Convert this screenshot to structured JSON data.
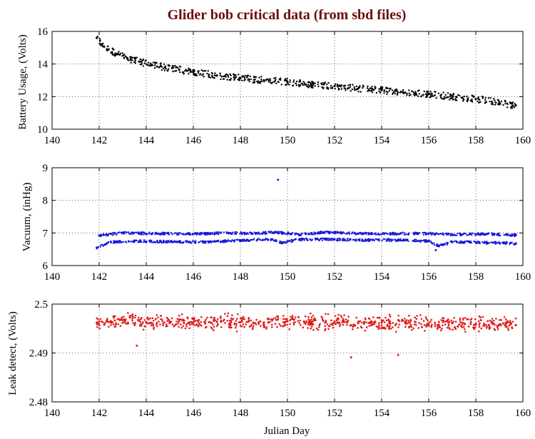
{
  "figure": {
    "title": "Glider bob critical data (from sbd files)",
    "title_color": "#6e0d0d"
  },
  "chart_data": [
    {
      "type": "scatter",
      "name": "battery",
      "title": "Glider bob critical data (from sbd files)",
      "xlabel": "",
      "ylabel": "Battery Usage, (Volts)",
      "xlim": [
        140,
        160
      ],
      "ylim": [
        10,
        16
      ],
      "xticks": [
        140,
        142,
        144,
        146,
        148,
        150,
        152,
        154,
        156,
        158,
        160
      ],
      "yticks": [
        10,
        12,
        14,
        16
      ],
      "grid": true,
      "color": "#000000",
      "series": [
        {
          "name": "battery voltage",
          "x": [
            141.9,
            142.1,
            142.4,
            142.8,
            143.2,
            143.7,
            144.2,
            144.8,
            145.4,
            146.0,
            147.0,
            148.0,
            149.0,
            150.0,
            151.0,
            152.0,
            153.0,
            154.0,
            155.0,
            156.0,
            157.0,
            158.0,
            159.0,
            159.7
          ],
          "y": [
            15.6,
            15.2,
            14.9,
            14.6,
            14.35,
            14.15,
            13.95,
            13.8,
            13.65,
            13.5,
            13.3,
            13.15,
            13.0,
            12.9,
            12.75,
            12.65,
            12.5,
            12.4,
            12.25,
            12.15,
            12.0,
            11.85,
            11.65,
            11.45
          ]
        }
      ]
    },
    {
      "type": "scatter",
      "name": "vacuum",
      "title": "",
      "xlabel": "",
      "ylabel": "Vacuum, (inHg)",
      "xlim": [
        140,
        160
      ],
      "ylim": [
        6,
        9
      ],
      "xticks": [
        140,
        142,
        144,
        146,
        148,
        150,
        152,
        154,
        156,
        158,
        160
      ],
      "yticks": [
        6,
        7,
        8,
        9
      ],
      "grid": true,
      "color": "#1a1adb",
      "series": [
        {
          "name": "vacuum lower band",
          "x": [
            141.9,
            142.5,
            143.5,
            145.0,
            146.5,
            148.0,
            149.3,
            149.8,
            150.5,
            152.0,
            153.5,
            155.0,
            156.0,
            156.4,
            157.0,
            157.5,
            158.5,
            159.7
          ],
          "y": [
            6.55,
            6.72,
            6.75,
            6.73,
            6.72,
            6.77,
            6.8,
            6.7,
            6.8,
            6.8,
            6.78,
            6.78,
            6.75,
            6.6,
            6.72,
            6.72,
            6.7,
            6.68
          ]
        },
        {
          "name": "vacuum upper band",
          "x": [
            142.0,
            143.0,
            144.5,
            146.0,
            147.5,
            148.5,
            149.5,
            150.5,
            151.5,
            153.0,
            154.5,
            156.0,
            157.0,
            158.5,
            159.7
          ],
          "y": [
            6.92,
            7.0,
            6.98,
            6.97,
            7.0,
            6.98,
            7.02,
            6.95,
            7.02,
            6.98,
            6.98,
            6.98,
            6.95,
            6.97,
            6.93
          ]
        },
        {
          "name": "vacuum outliers",
          "x": [
            149.6,
            156.3
          ],
          "y": [
            8.63,
            6.47
          ]
        }
      ]
    },
    {
      "type": "scatter",
      "name": "leak",
      "title": "",
      "xlabel": "Julian Day",
      "ylabel": "Leak detect, (Volts)",
      "xlim": [
        140,
        160
      ],
      "ylim": [
        2.48,
        2.5
      ],
      "xticks": [
        140,
        142,
        144,
        146,
        148,
        150,
        152,
        154,
        156,
        158,
        160
      ],
      "yticks": [
        2.48,
        2.49,
        2.5
      ],
      "grid": true,
      "color": "#e01b1b",
      "series": [
        {
          "name": "leak detect",
          "x": [
            141.9,
            142.5,
            143.0,
            144.0,
            145.0,
            146.0,
            147.0,
            148.0,
            149.0,
            150.0,
            151.0,
            152.0,
            153.0,
            154.0,
            155.0,
            156.0,
            157.0,
            158.0,
            159.0,
            159.7
          ],
          "y": [
            2.4962,
            2.4965,
            2.4967,
            2.4963,
            2.4964,
            2.4962,
            2.4964,
            2.4963,
            2.4962,
            2.4965,
            2.4963,
            2.4962,
            2.4961,
            2.4962,
            2.4963,
            2.4961,
            2.4961,
            2.496,
            2.4958,
            2.4957
          ]
        },
        {
          "name": "leak outliers",
          "x": [
            143.6,
            152.7,
            154.7
          ],
          "y": [
            2.4915,
            2.4891,
            2.4896
          ]
        }
      ]
    }
  ]
}
